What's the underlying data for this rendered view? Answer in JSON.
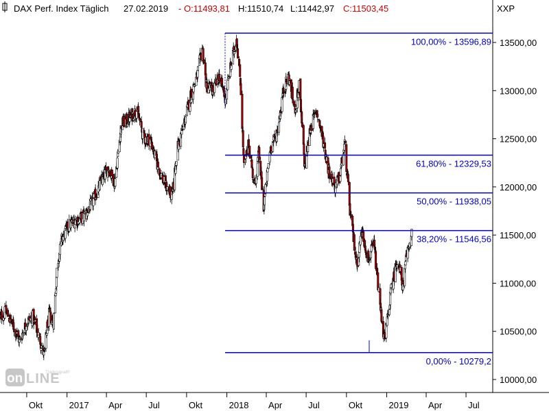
{
  "header": {
    "symbol_name": "DAX Perf. Index Täglich",
    "date": "27.02.2019",
    "ohlc_prefix": "-",
    "open": "O:11493,81",
    "high": "H:11510,74",
    "low": "L:11442,97",
    "close": "C:11503,45",
    "exchange": "XXP"
  },
  "colors": {
    "fib_line": "#0000cc",
    "fib_label": "#0000cc",
    "down_candle": "#aa0000",
    "up_candle": "#ffffff",
    "candle_outline": "#000000",
    "ohlc_text": "#cc0000"
  },
  "logo_text": "onLine",
  "chart_data": {
    "type": "candlestick",
    "title": "DAX Perf. Index Täglich",
    "x_tick_labels": [
      "Okt",
      "2017",
      "Apr",
      "Jul",
      "Okt",
      "2018",
      "Apr",
      "Jul",
      "Okt",
      "2019",
      "Apr",
      "Jul"
    ],
    "y_ticks": [
      "10000,00",
      "10500,00",
      "11000,00",
      "11500,00",
      "12000,00",
      "12500,00",
      "13000,00",
      "13500,00"
    ],
    "y_tick_values": [
      10000,
      10500,
      11000,
      11500,
      12000,
      12500,
      13000,
      13500
    ],
    "ylim": [
      9950,
      13850
    ],
    "fibonacci_levels": [
      {
        "label": "100,00% - 13596,89",
        "value": 13596.89
      },
      {
        "label": "61,80% - 12329,53",
        "value": 12329.53
      },
      {
        "label": "50,00% - 11938,05",
        "value": 11938.05
      },
      {
        "label": "38,20% - 11546,56",
        "value": 11546.56
      },
      {
        "label": "0,00% - 10279,2",
        "value": 10279.2
      }
    ],
    "price_path": [
      {
        "date": "2016-08-01",
        "close": 10650
      },
      {
        "date": "2016-08-15",
        "close": 10700
      },
      {
        "date": "2016-09-01",
        "close": 10550
      },
      {
        "date": "2016-09-15",
        "close": 10400
      },
      {
        "date": "2016-10-01",
        "close": 10600
      },
      {
        "date": "2016-10-15",
        "close": 10650
      },
      {
        "date": "2016-11-01",
        "close": 10400
      },
      {
        "date": "2016-11-10",
        "close": 10250
      },
      {
        "date": "2016-11-20",
        "close": 10680
      },
      {
        "date": "2016-12-01",
        "close": 10600
      },
      {
        "date": "2016-12-10",
        "close": 11200
      },
      {
        "date": "2016-12-20",
        "close": 11450
      },
      {
        "date": "2017-01-05",
        "close": 11600
      },
      {
        "date": "2017-01-20",
        "close": 11650
      },
      {
        "date": "2017-02-10",
        "close": 11700
      },
      {
        "date": "2017-03-01",
        "close": 11850
      },
      {
        "date": "2017-03-20",
        "close": 12050
      },
      {
        "date": "2017-04-05",
        "close": 12200
      },
      {
        "date": "2017-04-20",
        "close": 12050
      },
      {
        "date": "2017-05-05",
        "close": 12650
      },
      {
        "date": "2017-05-20",
        "close": 12700
      },
      {
        "date": "2017-06-10",
        "close": 12800
      },
      {
        "date": "2017-06-25",
        "close": 12500
      },
      {
        "date": "2017-07-10",
        "close": 12500
      },
      {
        "date": "2017-07-25",
        "close": 12250
      },
      {
        "date": "2017-08-10",
        "close": 12050
      },
      {
        "date": "2017-08-29",
        "close": 11900
      },
      {
        "date": "2017-09-10",
        "close": 12400
      },
      {
        "date": "2017-09-25",
        "close": 12650
      },
      {
        "date": "2017-10-10",
        "close": 12950
      },
      {
        "date": "2017-10-25",
        "close": 13150
      },
      {
        "date": "2017-11-06",
        "close": 13450
      },
      {
        "date": "2017-11-15",
        "close": 13050
      },
      {
        "date": "2017-11-30",
        "close": 13000
      },
      {
        "date": "2017-12-15",
        "close": 13150
      },
      {
        "date": "2017-12-28",
        "close": 12920
      },
      {
        "date": "2018-01-10",
        "close": 13250
      },
      {
        "date": "2018-01-23",
        "close": 13550
      },
      {
        "date": "2018-02-01",
        "close": 13100
      },
      {
        "date": "2018-02-09",
        "close": 12200
      },
      {
        "date": "2018-02-20",
        "close": 12450
      },
      {
        "date": "2018-03-05",
        "close": 12000
      },
      {
        "date": "2018-03-15",
        "close": 12350
      },
      {
        "date": "2018-03-26",
        "close": 11800
      },
      {
        "date": "2018-04-10",
        "close": 12400
      },
      {
        "date": "2018-04-25",
        "close": 12550
      },
      {
        "date": "2018-05-10",
        "close": 13000
      },
      {
        "date": "2018-05-22",
        "close": 13150
      },
      {
        "date": "2018-06-05",
        "close": 12800
      },
      {
        "date": "2018-06-15",
        "close": 13050
      },
      {
        "date": "2018-06-28",
        "close": 12200
      },
      {
        "date": "2018-07-10",
        "close": 12600
      },
      {
        "date": "2018-07-25",
        "close": 12800
      },
      {
        "date": "2018-08-10",
        "close": 12450
      },
      {
        "date": "2018-08-20",
        "close": 12200
      },
      {
        "date": "2018-09-05",
        "close": 12000
      },
      {
        "date": "2018-09-15",
        "close": 12100
      },
      {
        "date": "2018-09-27",
        "close": 12450
      },
      {
        "date": "2018-10-10",
        "close": 11700
      },
      {
        "date": "2018-10-25",
        "close": 11200
      },
      {
        "date": "2018-11-05",
        "close": 11550
      },
      {
        "date": "2018-11-20",
        "close": 11250
      },
      {
        "date": "2018-12-03",
        "close": 11400
      },
      {
        "date": "2018-12-15",
        "close": 10850
      },
      {
        "date": "2018-12-27",
        "close": 10380
      },
      {
        "date": "2019-01-10",
        "close": 10900
      },
      {
        "date": "2019-01-25",
        "close": 11250
      },
      {
        "date": "2019-02-08",
        "close": 10950
      },
      {
        "date": "2019-02-15",
        "close": 11300
      },
      {
        "date": "2019-02-27",
        "close": 11503
      }
    ]
  }
}
